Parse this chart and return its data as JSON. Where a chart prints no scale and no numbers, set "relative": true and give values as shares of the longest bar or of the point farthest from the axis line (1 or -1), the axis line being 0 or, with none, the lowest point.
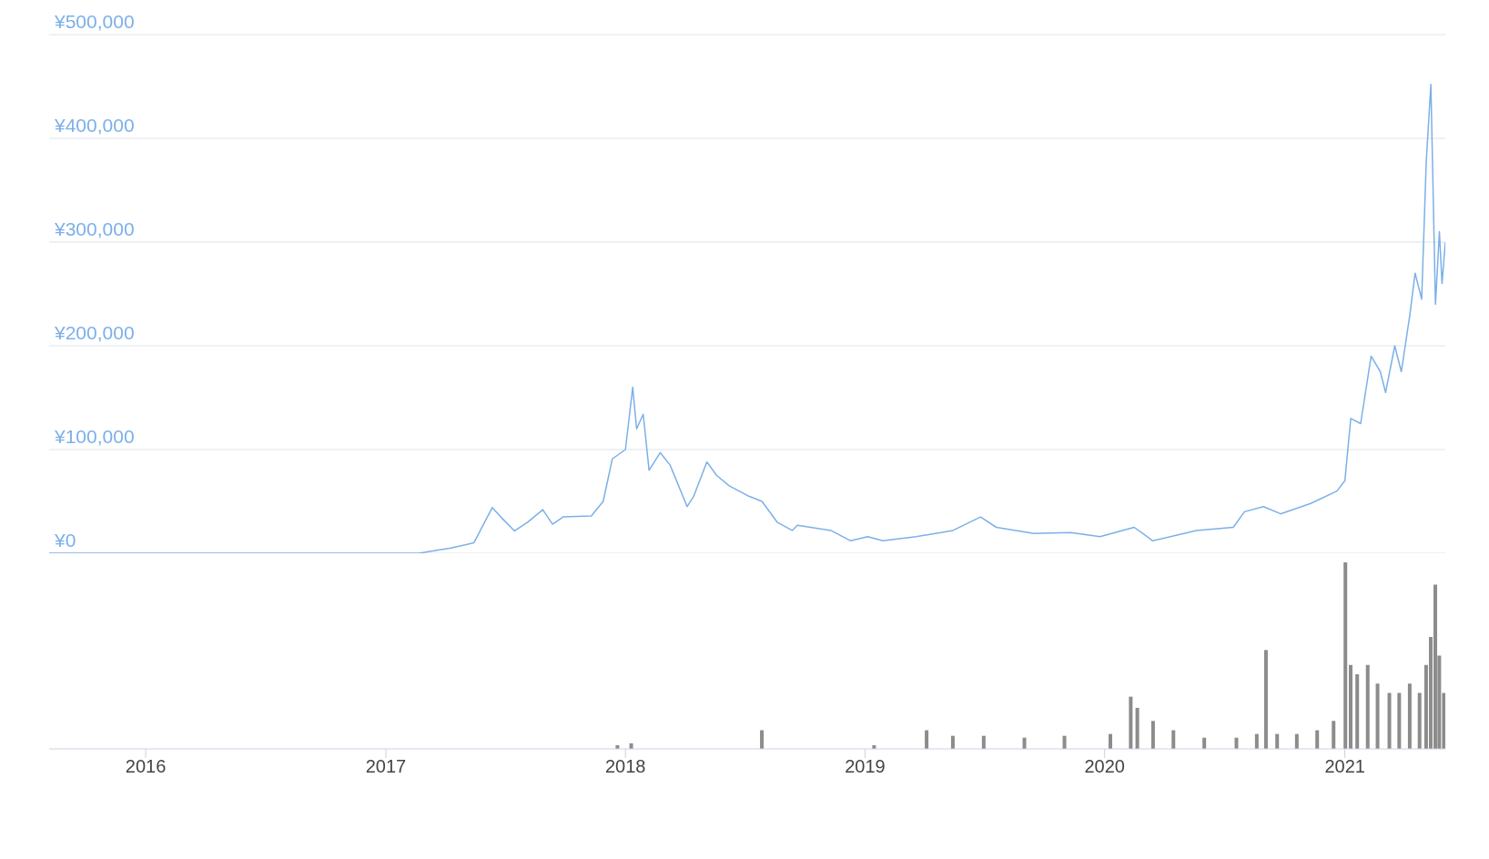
{
  "chart_data": [
    {
      "type": "line",
      "x": [
        "2015-08-07",
        "2016-03-15",
        "2016-06-15",
        "2017-01-15",
        "2017-02-20",
        "2017-04-10",
        "2017-05-15",
        "2017-06-12",
        "2017-06-25",
        "2017-07-16",
        "2017-08-05",
        "2017-08-28",
        "2017-09-12",
        "2017-09-28",
        "2017-11-10",
        "2017-11-28",
        "2017-12-12",
        "2018-01-01",
        "2018-01-12",
        "2018-01-18",
        "2018-01-28",
        "2018-02-06",
        "2018-02-23",
        "2018-03-10",
        "2018-04-05",
        "2018-04-15",
        "2018-05-05",
        "2018-05-20",
        "2018-06-08",
        "2018-07-08",
        "2018-07-28",
        "2018-08-20",
        "2018-09-12",
        "2018-09-20",
        "2018-11-10",
        "2018-12-10",
        "2019-01-05",
        "2019-01-28",
        "2019-03-20",
        "2019-05-15",
        "2019-06-26",
        "2019-07-20",
        "2019-09-15",
        "2019-11-10",
        "2019-12-25",
        "2020-02-15",
        "2020-03-08",
        "2020-03-14",
        "2020-05-20",
        "2020-07-15",
        "2020-08-01",
        "2020-08-30",
        "2020-09-25",
        "2020-11-10",
        "2020-12-20",
        "2021-01-01",
        "2021-01-10",
        "2021-01-25",
        "2021-02-10",
        "2021-02-24",
        "2021-03-04",
        "2021-03-18",
        "2021-03-28",
        "2021-04-10",
        "2021-04-18",
        "2021-04-28",
        "2021-05-05",
        "2021-05-12",
        "2021-05-19",
        "2021-05-25",
        "2021-05-29",
        "2021-06-03"
      ],
      "series": [
        {
          "color": "#7cb0e8",
          "values": [
            0,
            0,
            0,
            0,
            0,
            5000,
            10000,
            44000,
            35000,
            21500,
            30000,
            42000,
            28000,
            35000,
            36000,
            50000,
            91000,
            100000,
            160000,
            120000,
            134000,
            80000,
            97000,
            85000,
            45000,
            55000,
            88000,
            75000,
            65000,
            55000,
            50000,
            30000,
            22000,
            27000,
            22000,
            12000,
            16000,
            12000,
            16000,
            22000,
            35000,
            25000,
            19000,
            20000,
            16000,
            25000,
            15000,
            12000,
            22000,
            25000,
            40000,
            45000,
            38000,
            48000,
            60000,
            70000,
            130000,
            125000,
            190000,
            175000,
            155000,
            200000,
            175000,
            230000,
            270000,
            245000,
            378000,
            452000,
            240000,
            310000,
            260000,
            300000
          ]
        }
      ],
      "xlim": [
        "2015-08-07",
        "2021-06-03"
      ],
      "ylim": [
        0,
        500000
      ],
      "yticks": [
        {
          "value": 0,
          "label": "¥0"
        },
        {
          "value": 100000,
          "label": "¥100,000"
        },
        {
          "value": 200000,
          "label": "¥200,000"
        },
        {
          "value": 300000,
          "label": "¥300,000"
        },
        {
          "value": 400000,
          "label": "¥400,000"
        },
        {
          "value": 500000,
          "label": "¥500,000"
        }
      ],
      "grid": "y",
      "tick_labels": "y",
      "marker": "none"
    },
    {
      "type": "bar",
      "relative": true,
      "x": [
        "2015-09-01",
        "2016-03-01",
        "2016-09-01",
        "2017-03-01",
        "2017-09-01",
        "2017-12-20",
        "2018-01-10",
        "2018-04-01",
        "2018-07-28",
        "2018-10-01",
        "2019-01-15",
        "2019-04-05",
        "2019-05-15",
        "2019-07-01",
        "2019-09-01",
        "2019-11-01",
        "2020-01-10",
        "2020-02-10",
        "2020-02-20",
        "2020-03-15",
        "2020-04-15",
        "2020-06-01",
        "2020-07-20",
        "2020-08-20",
        "2020-09-03",
        "2020-09-20",
        "2020-10-20",
        "2020-11-20",
        "2020-12-15",
        "2021-01-02",
        "2021-01-10",
        "2021-01-20",
        "2021-02-05",
        "2021-02-20",
        "2021-03-10",
        "2021-03-25",
        "2021-04-10",
        "2021-04-25",
        "2021-05-05",
        "2021-05-12",
        "2021-05-19",
        "2021-05-25",
        "2021-06-01"
      ],
      "values": [
        0,
        0,
        0,
        null,
        null,
        0.02,
        0.03,
        null,
        0.1,
        null,
        0.02,
        0.1,
        0.07,
        0.07,
        0.06,
        0.07,
        0.08,
        0.28,
        0.22,
        0.15,
        0.1,
        0.06,
        0.06,
        0.08,
        0.53,
        0.08,
        0.08,
        0.1,
        0.15,
        1,
        0.45,
        0.4,
        0.45,
        0.35,
        0.3,
        0.3,
        0.35,
        0.3,
        0.45,
        0.6,
        0.88,
        0.5,
        0.3
      ],
      "color": "#8c8c8c",
      "xlim": [
        "2015-08-07",
        "2021-06-03"
      ],
      "xticks": [
        "2016",
        "2017",
        "2018",
        "2019",
        "2020",
        "2021"
      ],
      "tick_labels": "x"
    }
  ]
}
